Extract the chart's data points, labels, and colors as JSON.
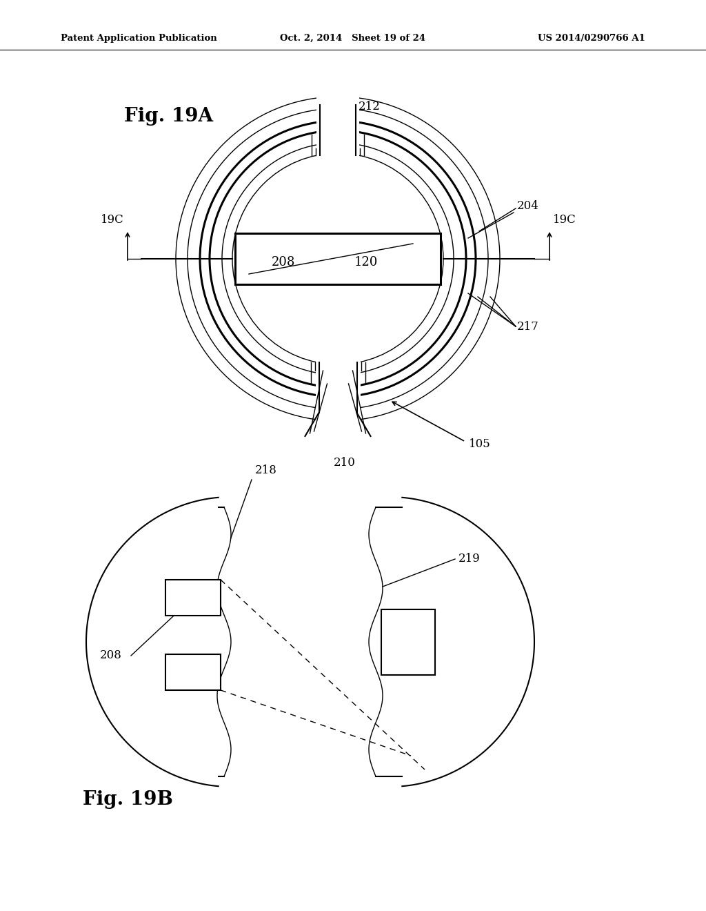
{
  "bg_color": "#ffffff",
  "line_color": "#000000",
  "header_left": "Patent Application Publication",
  "header_mid": "Oct. 2, 2014   Sheet 19 of 24",
  "header_right": "US 2014/0290766 A1",
  "fig19A_label": "Fig. 19A",
  "fig19B_label": "Fig. 19B",
  "figW": 1024,
  "figH": 1320
}
